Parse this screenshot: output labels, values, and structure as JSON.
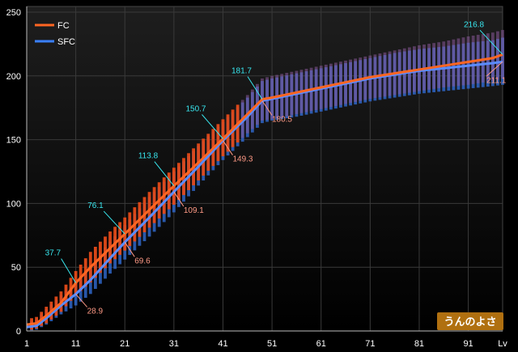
{
  "chart_data": {
    "type": "line",
    "x_axis": {
      "label": "Lv",
      "ticks": [
        "1",
        "11",
        "21",
        "31",
        "41",
        "51",
        "61",
        "71",
        "81",
        "91"
      ],
      "range": [
        1,
        98
      ]
    },
    "y_axis": {
      "ticks": [
        "0",
        "50",
        "100",
        "150",
        "200",
        "250"
      ],
      "range": [
        0,
        250
      ]
    },
    "grid": true,
    "legend": {
      "position": "top-left",
      "entries": [
        "FC",
        "SFC"
      ]
    },
    "watermark": "うんのよさ",
    "colors": {
      "fc": "#ff6622",
      "sfc": "#3a80ff",
      "fc_label": "#ff9a86",
      "sfc_label": "#38e8f0"
    },
    "series": [
      {
        "name": "SFC",
        "color": "#3a80ff",
        "x": [
          1,
          3,
          5,
          8,
          11,
          14,
          18,
          21,
          26,
          31,
          36,
          41,
          46,
          49,
          51,
          56,
          61,
          66,
          71,
          76,
          81,
          86,
          91,
          96,
          98
        ],
        "y": [
          5,
          6,
          12,
          22,
          37.7,
          50,
          65,
          76.1,
          95,
          113.8,
          132,
          150.7,
          170,
          181.7,
          183,
          187,
          191,
          195,
          199,
          202,
          205,
          208,
          211,
          214,
          216.8
        ],
        "band_low": [
          0,
          2,
          6,
          15,
          28,
          38,
          53,
          63,
          81,
          99,
          118,
          137,
          155,
          165,
          166,
          170,
          174,
          178,
          182,
          185,
          188,
          191,
          193,
          196,
          198
        ],
        "band_high": [
          9,
          11,
          19,
          31,
          47,
          62,
          78,
          89,
          109,
          128,
          147,
          166,
          185,
          198,
          200,
          204,
          208,
          212,
          216,
          220,
          224,
          227,
          231,
          234,
          236
        ]
      },
      {
        "name": "FC",
        "color": "#ff6622",
        "x": [
          1,
          3,
          5,
          8,
          11,
          14,
          18,
          21,
          26,
          31,
          36,
          41,
          46,
          49,
          51,
          56,
          61,
          66,
          71,
          76,
          81,
          86,
          91,
          96,
          98
        ],
        "y": [
          3,
          4,
          10,
          20,
          28.9,
          40,
          57,
          69.6,
          89,
          109.1,
          129,
          149.3,
          168,
          180.5,
          182,
          186,
          190,
          194,
          198,
          201,
          204,
          206,
          208,
          210,
          211.1
        ],
        "band_low": [
          0,
          1,
          5,
          13,
          20,
          29,
          45,
          56,
          74,
          93,
          114,
          134,
          152,
          163,
          165,
          168,
          172,
          176,
          180,
          183,
          186,
          188,
          190,
          192,
          193
        ],
        "band_high": [
          7,
          9,
          17,
          28,
          38,
          52,
          70,
          83,
          105,
          125,
          145,
          164,
          183,
          196,
          198,
          202,
          206,
          210,
          214,
          218,
          221,
          223,
          226,
          228,
          230
        ]
      }
    ],
    "annotations": [
      {
        "series": "SFC",
        "x": 11,
        "y": 37.7,
        "text": "37.7"
      },
      {
        "series": "SFC",
        "x": 21,
        "y": 76.1,
        "text": "76.1"
      },
      {
        "series": "SFC",
        "x": 31,
        "y": 113.8,
        "text": "113.8"
      },
      {
        "series": "SFC",
        "x": 41,
        "y": 150.7,
        "text": "150.7"
      },
      {
        "series": "SFC",
        "x": 49,
        "y": 181.7,
        "text": "181.7"
      },
      {
        "series": "SFC",
        "x": 98,
        "y": 216.8,
        "text": "216.8"
      },
      {
        "series": "FC",
        "x": 11,
        "y": 28.9,
        "text": "28.9"
      },
      {
        "series": "FC",
        "x": 21,
        "y": 69.6,
        "text": "69.6"
      },
      {
        "series": "FC",
        "x": 31,
        "y": 109.1,
        "text": "109.1"
      },
      {
        "series": "FC",
        "x": 41,
        "y": 149.3,
        "text": "149.3"
      },
      {
        "series": "FC",
        "x": 49,
        "y": 180.5,
        "text": "180.5"
      },
      {
        "series": "FC",
        "x": 98,
        "y": 211.1,
        "text": "211.1"
      }
    ]
  }
}
